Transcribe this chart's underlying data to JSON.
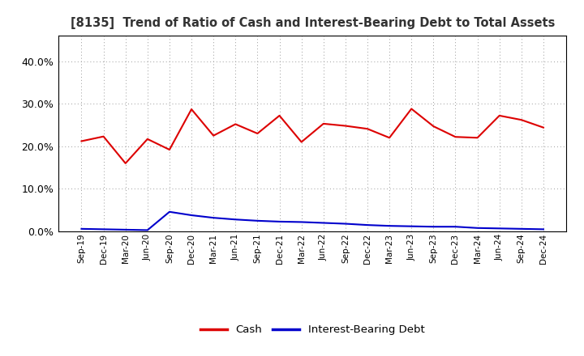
{
  "title": "[8135]  Trend of Ratio of Cash and Interest-Bearing Debt to Total Assets",
  "x_labels": [
    "Sep-19",
    "Dec-19",
    "Mar-20",
    "Jun-20",
    "Sep-20",
    "Dec-20",
    "Mar-21",
    "Jun-21",
    "Sep-21",
    "Dec-21",
    "Mar-22",
    "Jun-22",
    "Sep-22",
    "Dec-22",
    "Mar-23",
    "Jun-23",
    "Sep-23",
    "Dec-23",
    "Mar-24",
    "Jun-24",
    "Sep-24",
    "Dec-24"
  ],
  "cash": [
    21.2,
    22.3,
    16.0,
    21.7,
    19.2,
    28.7,
    22.5,
    25.2,
    23.0,
    27.2,
    21.0,
    25.3,
    24.8,
    24.1,
    22.0,
    28.8,
    24.7,
    22.2,
    22.0,
    27.2,
    26.2,
    24.4
  ],
  "ibd": [
    0.6,
    0.5,
    0.4,
    0.3,
    4.6,
    3.8,
    3.2,
    2.8,
    2.5,
    2.3,
    2.2,
    2.0,
    1.8,
    1.5,
    1.3,
    1.2,
    1.1,
    1.1,
    0.8,
    0.7,
    0.6,
    0.5
  ],
  "cash_color": "#dd0000",
  "ibd_color": "#0000cc",
  "bg_color": "#ffffff",
  "grid_color": "#999999",
  "ylim": [
    0,
    46
  ],
  "yticks": [
    0,
    10,
    20,
    30,
    40
  ],
  "legend_labels": [
    "Cash",
    "Interest-Bearing Debt"
  ]
}
